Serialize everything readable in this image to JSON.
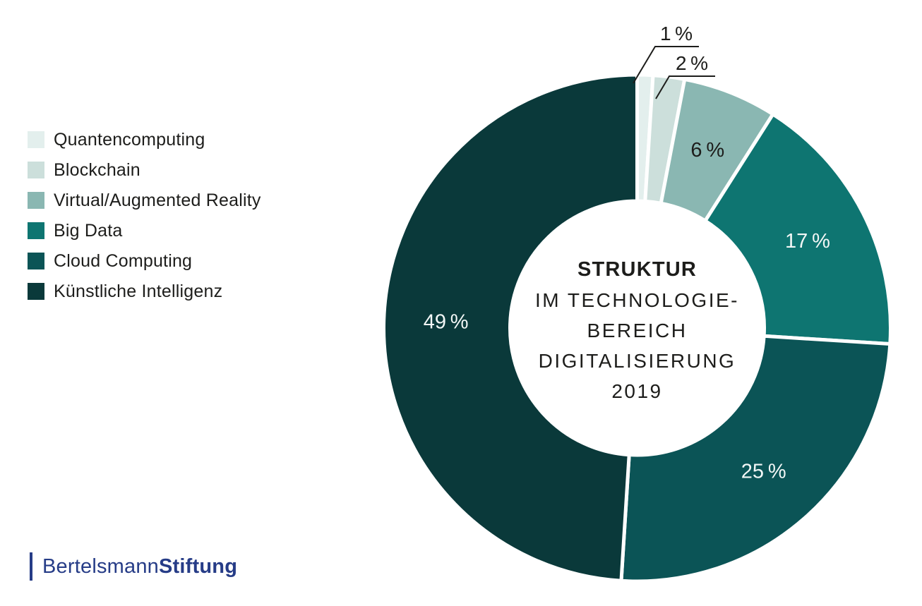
{
  "chart_data": {
    "type": "pie",
    "donut": true,
    "title": "Struktur im Technologiebereich Digitalisierung 2019",
    "title_lines": [
      "STRUKTUR",
      "IM TECHNOLOGIE-",
      "BEREICH",
      "DIGITALISIERUNG",
      "2019"
    ],
    "unit": "%",
    "legend_position": "left",
    "segments": [
      {
        "label": "Quantencomputing",
        "value": 1,
        "display": "1 %",
        "color": "#e3efed",
        "label_color": "#1d1d1b",
        "callout": true
      },
      {
        "label": "Blockchain",
        "value": 2,
        "display": "2 %",
        "color": "#ccdfdb",
        "label_color": "#1d1d1b",
        "callout": true
      },
      {
        "label": "Virtual/Augmented Reality",
        "value": 6,
        "display": "6 %",
        "color": "#8ab7b2",
        "label_color": "#1d1d1b",
        "callout": false
      },
      {
        "label": "Big Data",
        "value": 17,
        "display": "17 %",
        "color": "#0e7571",
        "label_color": "#f2f7f6",
        "callout": false
      },
      {
        "label": "Cloud Computing",
        "value": 25,
        "display": "25 %",
        "color": "#0b5456",
        "label_color": "#f2f7f6",
        "callout": false
      },
      {
        "label": "Künstliche Intelligenz",
        "value": 49,
        "display": "49 %",
        "color": "#0a393a",
        "label_color": "#f2f7f6",
        "callout": false
      }
    ]
  },
  "logo": {
    "prefix": "Bertelsmann",
    "suffix": "Stiftung",
    "color": "#263c87"
  },
  "colors": {
    "text": "#1d1d1b",
    "background": "#ffffff",
    "leader_line": "#1d1d1b"
  }
}
